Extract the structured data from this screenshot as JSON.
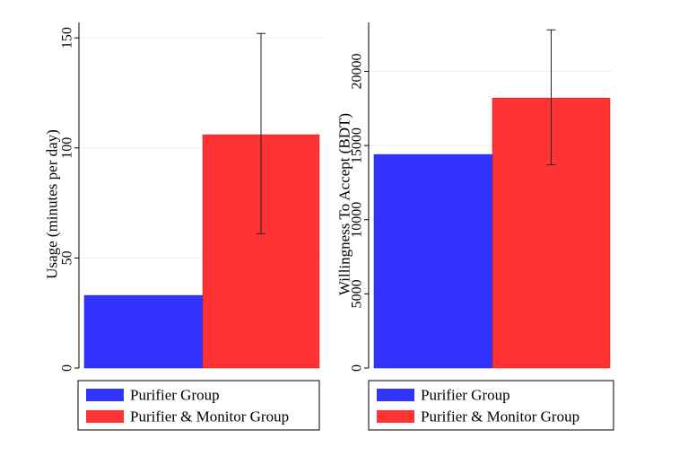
{
  "chart_data": [
    {
      "type": "bar",
      "ylabel": "Usage (minutes per day)",
      "ylim": [
        0,
        157
      ],
      "yticks": [
        0,
        50,
        100,
        150
      ],
      "grid": true,
      "legend": "bottom",
      "series": [
        {
          "name": "Purifier Group",
          "color": "#3333ff",
          "value": 33
        },
        {
          "name": "Purifier & Monitor Group",
          "color": "#ff3333",
          "value": 106,
          "error": [
            61,
            152
          ]
        }
      ]
    },
    {
      "type": "bar",
      "ylabel": "Willingness To Accept (BDT)",
      "ylim": [
        0,
        23300
      ],
      "yticks": [
        0,
        5000,
        10000,
        15000,
        20000
      ],
      "grid": true,
      "legend": "bottom",
      "series": [
        {
          "name": "Purifier Group",
          "color": "#3333ff",
          "value": 14400
        },
        {
          "name": "Purifier & Monitor Group",
          "color": "#ff3333",
          "value": 18200,
          "error": [
            13700,
            22800
          ]
        }
      ]
    }
  ]
}
